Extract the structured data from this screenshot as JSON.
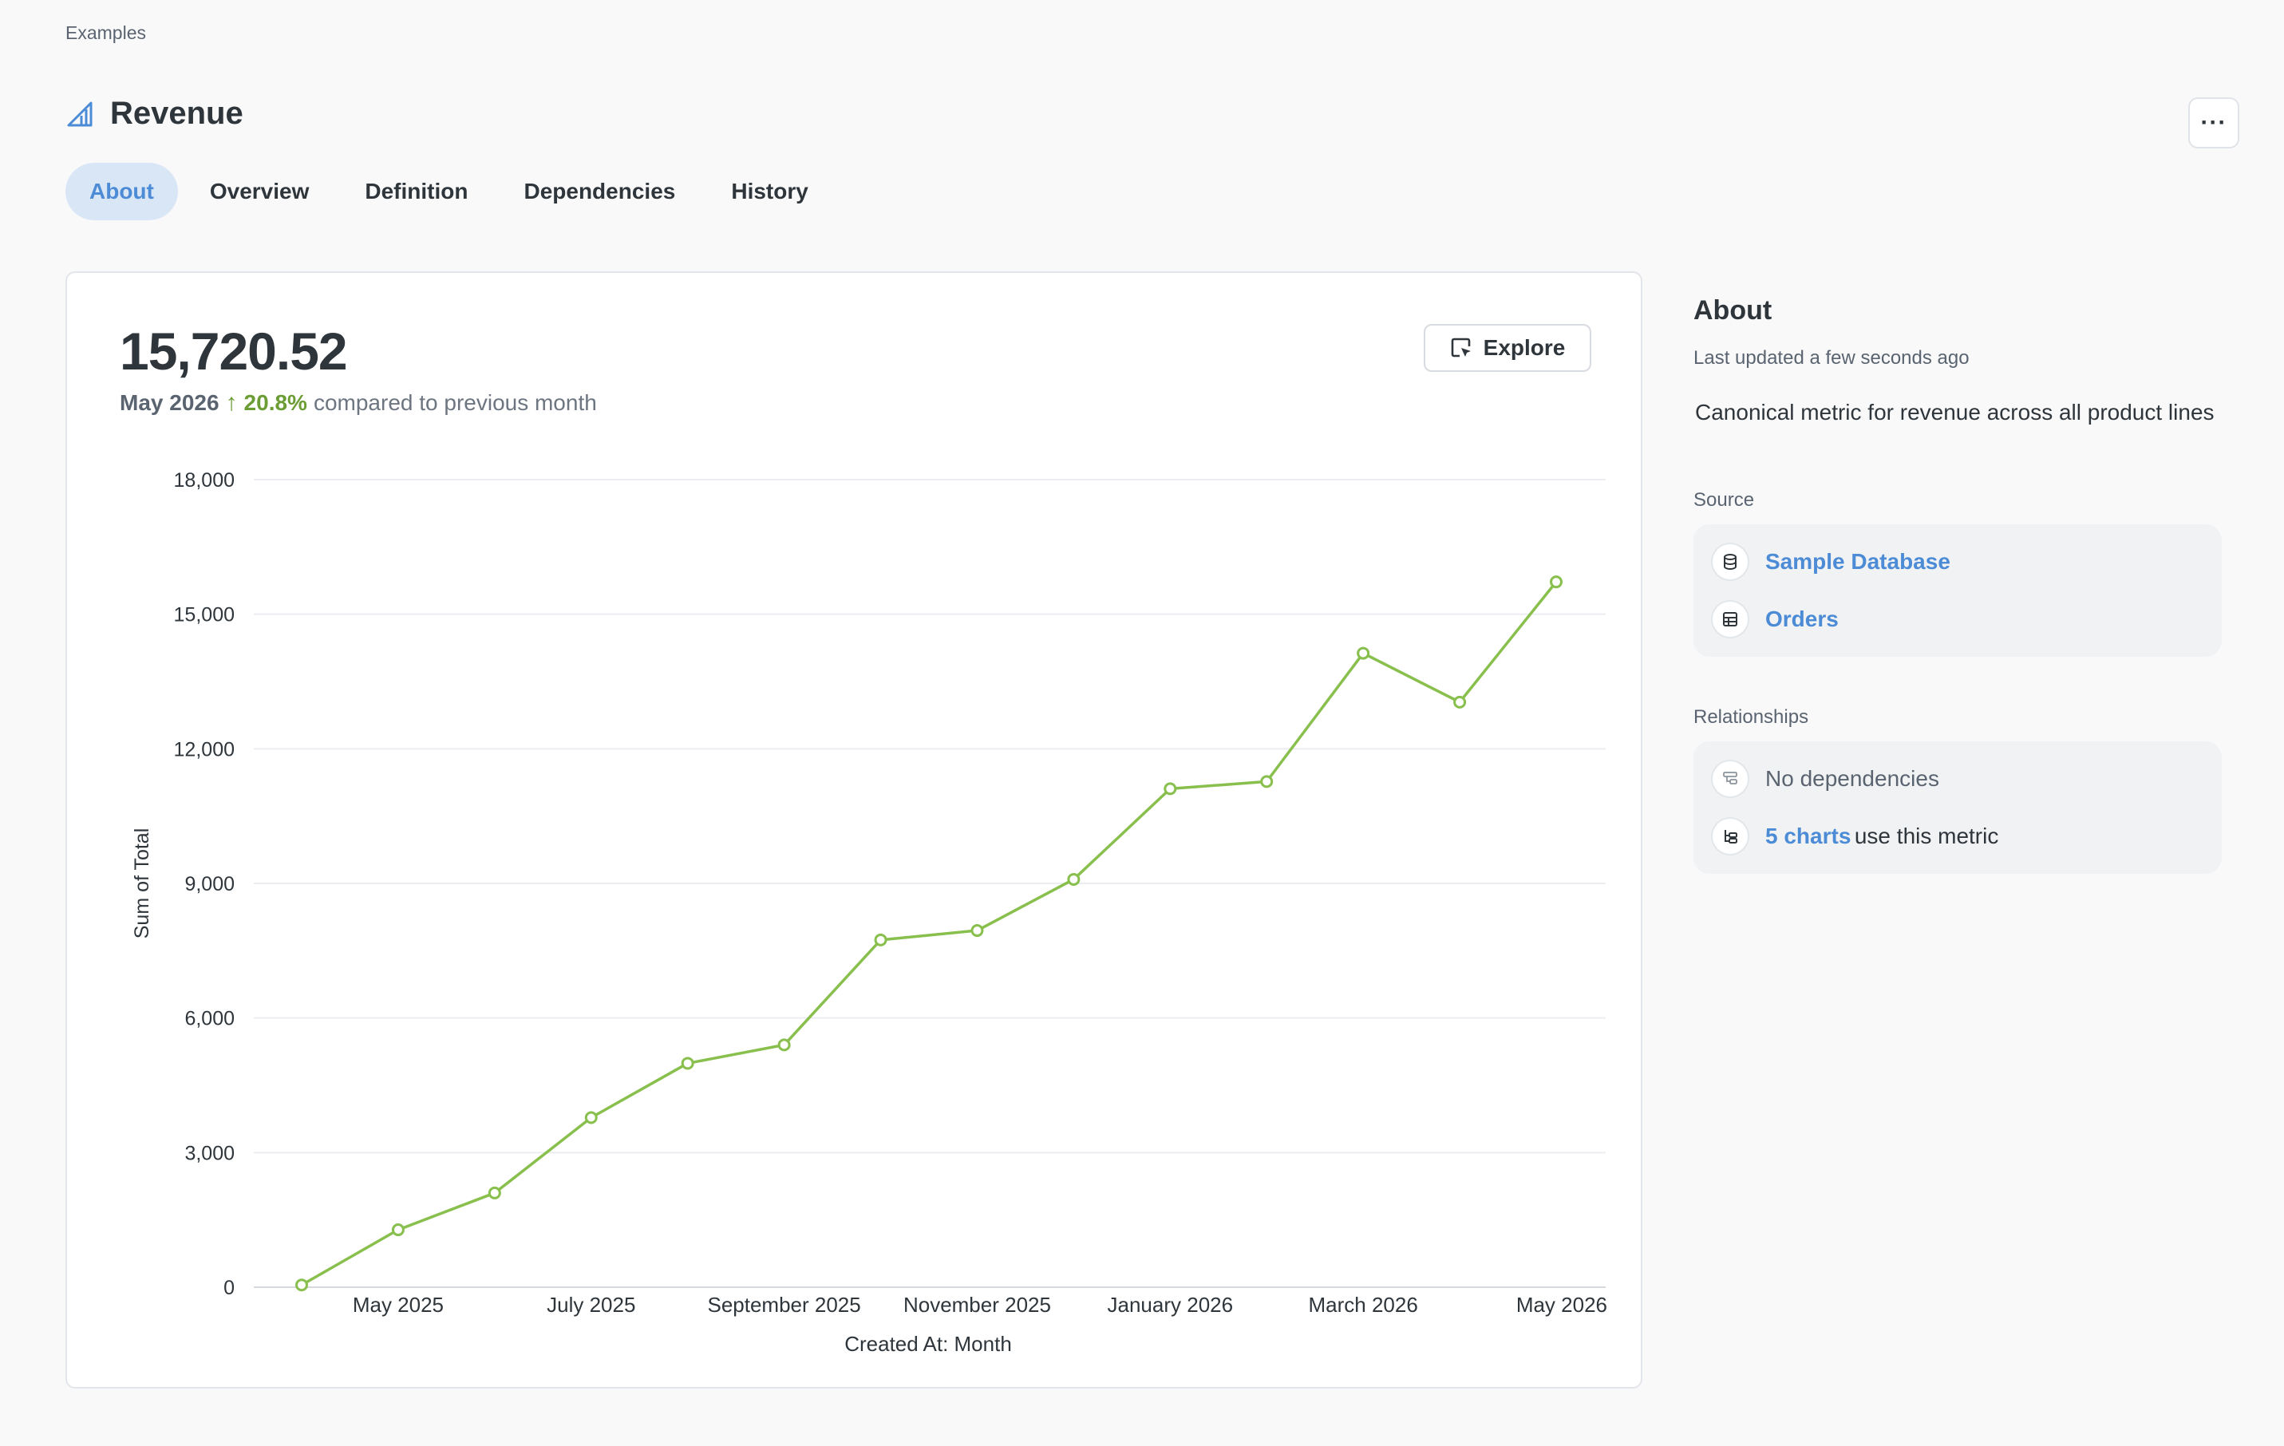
{
  "breadcrumb": "Examples",
  "page_title": "Revenue",
  "more_label": "···",
  "tabs": [
    {
      "label": "About"
    },
    {
      "label": "Overview"
    },
    {
      "label": "Definition"
    },
    {
      "label": "Dependencies"
    },
    {
      "label": "History"
    }
  ],
  "card": {
    "value": "15,720.52",
    "period": "May 2026",
    "arrow": "↑",
    "change": "20.8%",
    "compare_text": "compared to previous month",
    "explore_label": "Explore"
  },
  "chart_data": {
    "type": "line",
    "x": [
      "April 2025",
      "May 2025",
      "June 2025",
      "July 2025",
      "August 2025",
      "September 2025",
      "October 2025",
      "November 2025",
      "December 2025",
      "January 2026",
      "February 2026",
      "March 2026",
      "April 2026",
      "May 2026"
    ],
    "values": [
      50,
      1280,
      2100,
      3780,
      4990,
      5400,
      7740,
      7950,
      9090,
      11110,
      11270,
      14130,
      13040,
      15720.52
    ],
    "tick_labels": [
      "May 2025",
      "July 2025",
      "September 2025",
      "November 2025",
      "January 2026",
      "March 2026",
      "May 2026"
    ],
    "xlabel": "Created At: Month",
    "ylabel": "Sum of Total",
    "ylim": [
      0,
      18000
    ],
    "yticks": [
      "0",
      "3,000",
      "6,000",
      "9,000",
      "12,000",
      "15,000",
      "18,000"
    ],
    "color": "#88bf4d",
    "grid": true
  },
  "about": {
    "heading": "About",
    "updated": "Last updated a few seconds ago",
    "description": "Canonical metric for revenue across all product lines",
    "source_label": "Source",
    "database": "Sample Database",
    "table": "Orders",
    "relationships_label": "Relationships",
    "dependencies": "No dependencies",
    "charts_link": "5 charts",
    "charts_suffix": "use this metric"
  }
}
